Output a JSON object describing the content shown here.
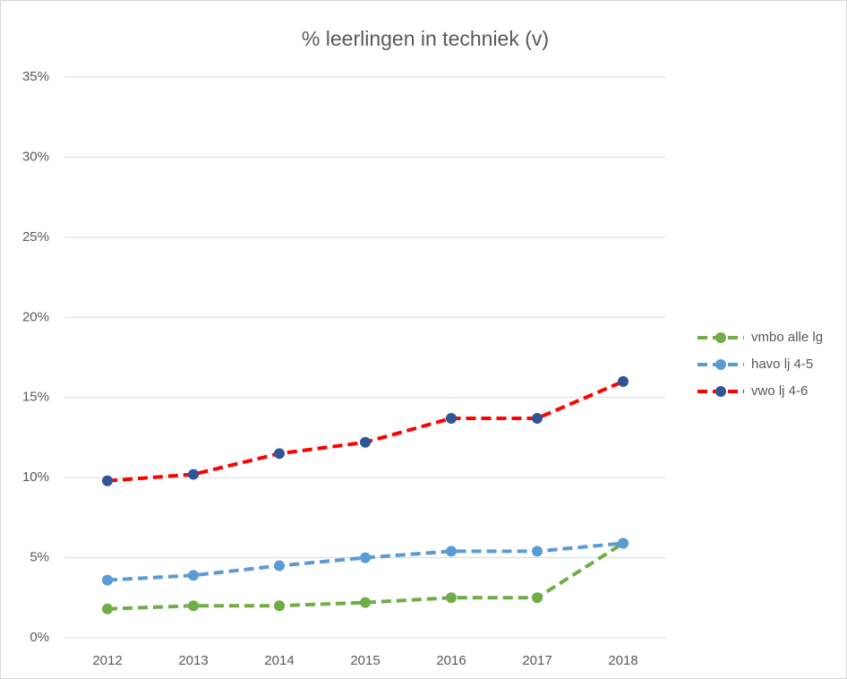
{
  "chart_data": {
    "type": "line",
    "title": "% leerlingen in techniek (v)",
    "categories": [
      "2012",
      "2013",
      "2014",
      "2015",
      "2016",
      "2017",
      "2018"
    ],
    "series": [
      {
        "name": "vmbo alle lg",
        "color": "#70ad47",
        "marker_color": "#70ad47",
        "values": [
          1.8,
          2.0,
          2.0,
          2.2,
          2.5,
          2.5,
          5.9
        ]
      },
      {
        "name": "havo lj 4-5",
        "color": "#5b9bd5",
        "marker_color": "#5b9bd5",
        "values": [
          3.6,
          3.9,
          4.5,
          5.0,
          5.4,
          5.4,
          5.9
        ]
      },
      {
        "name": "vwo lj 4-6",
        "color": "#ff0000",
        "marker_color": "#2f5597",
        "values": [
          9.8,
          10.2,
          11.5,
          12.2,
          13.7,
          13.7,
          16.0
        ]
      }
    ],
    "ylim": [
      0,
      35
    ],
    "yticks": [
      {
        "value": 0,
        "label": "0%"
      },
      {
        "value": 5,
        "label": "5%"
      },
      {
        "value": 10,
        "label": "10%"
      },
      {
        "value": 15,
        "label": "15%"
      },
      {
        "value": 20,
        "label": "20%"
      },
      {
        "value": 25,
        "label": "25%"
      },
      {
        "value": 30,
        "label": "30%"
      },
      {
        "value": 35,
        "label": "35%"
      }
    ],
    "grid": true,
    "legend": "right"
  }
}
